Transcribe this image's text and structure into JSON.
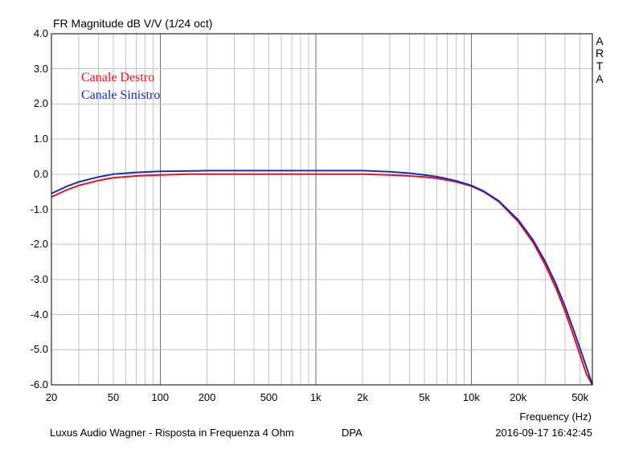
{
  "title": "FR Magnitude dB V/V (1/24 oct)",
  "branding": [
    "A",
    "R",
    "T",
    "A"
  ],
  "footer": {
    "description": "Luxus Audio Wagner - Risposta in Frequenza 4 Ohm",
    "tag": "DPA",
    "timestamp": "2016-09-17  16:42:45"
  },
  "chart_data": {
    "type": "line",
    "title": "FR Magnitude dB V/V (1/24 oct)",
    "xlabel": "Frequency (Hz)",
    "ylabel": "",
    "xscale": "log",
    "xlim": [
      20,
      60000
    ],
    "ylim": [
      -6.0,
      4.0
    ],
    "grid": true,
    "legend_position": "top-left",
    "xticks": [
      {
        "value": 20,
        "label": "20"
      },
      {
        "value": 50,
        "label": "50"
      },
      {
        "value": 100,
        "label": "100"
      },
      {
        "value": 200,
        "label": "200"
      },
      {
        "value": 500,
        "label": "500"
      },
      {
        "value": 1000,
        "label": "1k"
      },
      {
        "value": 2000,
        "label": "2k"
      },
      {
        "value": 5000,
        "label": "5k"
      },
      {
        "value": 10000,
        "label": "10k"
      },
      {
        "value": 20000,
        "label": "20k"
      },
      {
        "value": 50000,
        "label": "50k"
      }
    ],
    "yticks": [
      "4.0",
      "3.0",
      "2.0",
      "1.0",
      "0.0",
      "-1.0",
      "-2.0",
      "-3.0",
      "-4.0",
      "-5.0",
      "-6.0"
    ],
    "series": [
      {
        "name": "Canale Destro",
        "color": "#e0141e",
        "x": [
          20,
          25,
          30,
          40,
          50,
          70,
          100,
          150,
          200,
          500,
          1000,
          2000,
          3000,
          4000,
          5000,
          6000,
          7000,
          8000,
          10000,
          12000,
          15000,
          20000,
          25000,
          30000,
          35000,
          40000,
          45000,
          50000,
          55000,
          60000
        ],
        "y": [
          -0.65,
          -0.45,
          -0.32,
          -0.18,
          -0.1,
          -0.05,
          -0.02,
          0.0,
          0.0,
          0.0,
          0.0,
          0.0,
          -0.02,
          -0.05,
          -0.08,
          -0.12,
          -0.17,
          -0.22,
          -0.34,
          -0.5,
          -0.78,
          -1.35,
          -1.95,
          -2.6,
          -3.25,
          -3.9,
          -4.55,
          -5.15,
          -5.7,
          -6.05
        ]
      },
      {
        "name": "Canale Sinistro",
        "color": "#1c2cb4",
        "x": [
          20,
          25,
          30,
          40,
          50,
          70,
          100,
          150,
          200,
          500,
          1000,
          2000,
          3000,
          4000,
          5000,
          6000,
          7000,
          8000,
          10000,
          12000,
          15000,
          20000,
          25000,
          30000,
          35000,
          40000,
          45000,
          50000,
          55000,
          60000
        ],
        "y": [
          -0.55,
          -0.35,
          -0.22,
          -0.08,
          0.0,
          0.05,
          0.08,
          0.09,
          0.1,
          0.1,
          0.1,
          0.1,
          0.07,
          0.03,
          -0.02,
          -0.07,
          -0.13,
          -0.19,
          -0.32,
          -0.48,
          -0.76,
          -1.3,
          -1.88,
          -2.5,
          -3.13,
          -3.76,
          -4.38,
          -4.97,
          -5.5,
          -6.0
        ]
      }
    ]
  }
}
